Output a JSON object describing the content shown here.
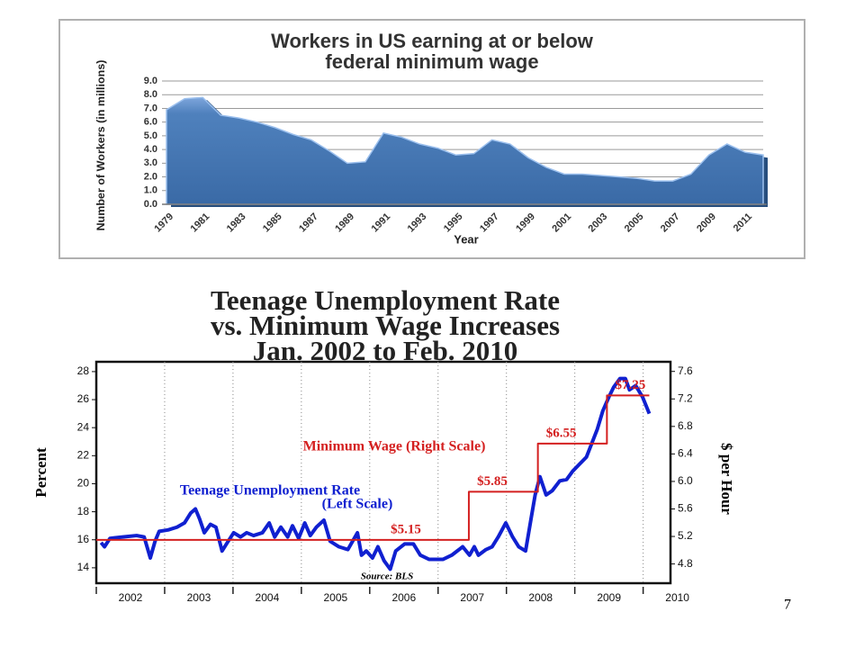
{
  "page_number": "7",
  "chart_data": [
    {
      "type": "area",
      "title": [
        "Workers in US earning at or below",
        "federal minimum wage"
      ],
      "y_label": "Number of Workers (in millions)",
      "x_label": "Year",
      "categories": [
        "1979",
        null,
        "1981",
        null,
        "1983",
        null,
        "1985",
        null,
        "1987",
        null,
        "1989",
        null,
        "1991",
        null,
        "1993",
        null,
        "1995",
        null,
        "1997",
        null,
        "1999",
        null,
        "2001",
        null,
        "2003",
        null,
        "2005",
        null,
        "2007",
        null,
        "2009",
        null,
        "2011",
        null
      ],
      "values": [
        6.9,
        7.7,
        7.8,
        6.5,
        6.3,
        6.0,
        5.6,
        5.1,
        4.7,
        3.9,
        3.0,
        3.1,
        5.2,
        4.9,
        4.4,
        4.1,
        3.6,
        3.7,
        4.7,
        4.4,
        3.4,
        2.7,
        2.2,
        2.2,
        2.1,
        2.0,
        1.9,
        1.7,
        1.7,
        2.2,
        3.6,
        4.4,
        3.8,
        3.6
      ],
      "color": "#4f81bd",
      "ylim": [
        0,
        9
      ],
      "yticks": [
        {
          "value": 0,
          "label": "0.0"
        },
        {
          "value": 1,
          "label": "1.0"
        },
        {
          "value": 2,
          "label": "2.0"
        },
        {
          "value": 3,
          "label": "3.0"
        },
        {
          "value": 4,
          "label": "4.0"
        },
        {
          "value": 5,
          "label": "5.0"
        },
        {
          "value": 6,
          "label": "6.0"
        },
        {
          "value": 7,
          "label": "7.0"
        },
        {
          "value": 8,
          "label": "8.0"
        },
        {
          "value": 9,
          "label": "9.0"
        }
      ],
      "grid": true
    },
    {
      "type": "line",
      "title": [
        "Teenage Unemployment Rate",
        "vs. Minimum Wage Increases",
        "Jan. 2002 to Feb. 2010"
      ],
      "y_label": "Percent",
      "y2_label": "$ per Hour",
      "source": "Source: BLS",
      "xlim": [
        2002.0,
        2010.4
      ],
      "xticks": [
        2002,
        2003,
        2004,
        2005,
        2006,
        2007,
        2008,
        2009,
        2010
      ],
      "ylim": [
        12.9,
        28.7
      ],
      "yticks": [
        14,
        16,
        18,
        20,
        22,
        24,
        26,
        28
      ],
      "y2lim": [
        4.52,
        7.74
      ],
      "y2ticks": [
        4.8,
        5.2,
        5.6,
        {
          "value": 6,
          "label": "6.0"
        },
        6.4,
        6.8,
        7.2,
        7.6
      ],
      "xgrid": true,
      "series": [
        {
          "name": "Teenage Unemployment Rate",
          "scale_note": "(Left Scale)",
          "color": "#1020d0",
          "x": [
            2002.07,
            2002.12,
            2002.2,
            2002.39,
            2002.59,
            2002.7,
            2002.79,
            2002.86,
            2002.92,
            2003.05,
            2003.18,
            2003.29,
            2003.38,
            2003.45,
            2003.51,
            2003.58,
            2003.67,
            2003.75,
            2003.84,
            2003.93,
            2004.01,
            2004.11,
            2004.2,
            2004.3,
            2004.43,
            2004.53,
            2004.61,
            2004.7,
            2004.8,
            2004.87,
            2004.96,
            2005.05,
            2005.13,
            2005.22,
            2005.33,
            2005.42,
            2005.55,
            2005.68,
            2005.82,
            2005.88,
            2005.95,
            2006.04,
            2006.12,
            2006.21,
            2006.3,
            2006.38,
            2006.51,
            2006.64,
            2006.74,
            2006.87,
            2007.07,
            2007.2,
            2007.36,
            2007.46,
            2007.53,
            2007.59,
            2007.7,
            2007.79,
            2007.88,
            2007.99,
            2008.09,
            2008.18,
            2008.28,
            2008.36,
            2008.42,
            2008.49,
            2008.58,
            2008.67,
            2008.78,
            2008.88,
            2008.97,
            2009.07,
            2009.17,
            2009.25,
            2009.33,
            2009.41,
            2009.5,
            2009.57,
            2009.66,
            2009.74,
            2009.8,
            2009.89,
            2009.99,
            2010.09
          ],
          "values": [
            15.8,
            15.5,
            16.1,
            16.2,
            16.3,
            16.2,
            14.7,
            15.9,
            16.6,
            16.7,
            16.9,
            17.2,
            17.9,
            18.2,
            17.5,
            16.5,
            17.1,
            16.9,
            15.2,
            15.9,
            16.5,
            16.2,
            16.5,
            16.3,
            16.5,
            17.2,
            16.2,
            16.9,
            16.2,
            17.0,
            16.1,
            17.2,
            16.3,
            16.9,
            17.4,
            15.9,
            15.5,
            15.3,
            16.5,
            14.9,
            15.2,
            14.7,
            15.5,
            14.5,
            13.9,
            15.2,
            15.7,
            15.7,
            14.9,
            14.6,
            14.6,
            14.9,
            15.5,
            14.9,
            15.5,
            14.9,
            15.3,
            15.5,
            16.2,
            17.2,
            16.2,
            15.5,
            15.2,
            17.5,
            19.2,
            20.5,
            19.2,
            19.5,
            20.2,
            20.3,
            20.9,
            21.4,
            21.9,
            22.9,
            23.9,
            25.2,
            26.2,
            26.9,
            27.5,
            27.5,
            26.7,
            27.0,
            26.2,
            25.0
          ]
        },
        {
          "name": "Minimum Wage (Right Scale)",
          "color": "#d42020",
          "axis": "y2",
          "x": [
            2002.0,
            2007.45,
            2007.45,
            2008.46,
            2008.46,
            2009.47,
            2009.47,
            2010.09
          ],
          "values": [
            5.15,
            5.15,
            5.85,
            5.85,
            6.55,
            6.55,
            7.25,
            7.25
          ],
          "value_labels": [
            "$5.15",
            null,
            "$5.85",
            null,
            "$6.55",
            null,
            "$7.25",
            null
          ]
        }
      ]
    }
  ]
}
